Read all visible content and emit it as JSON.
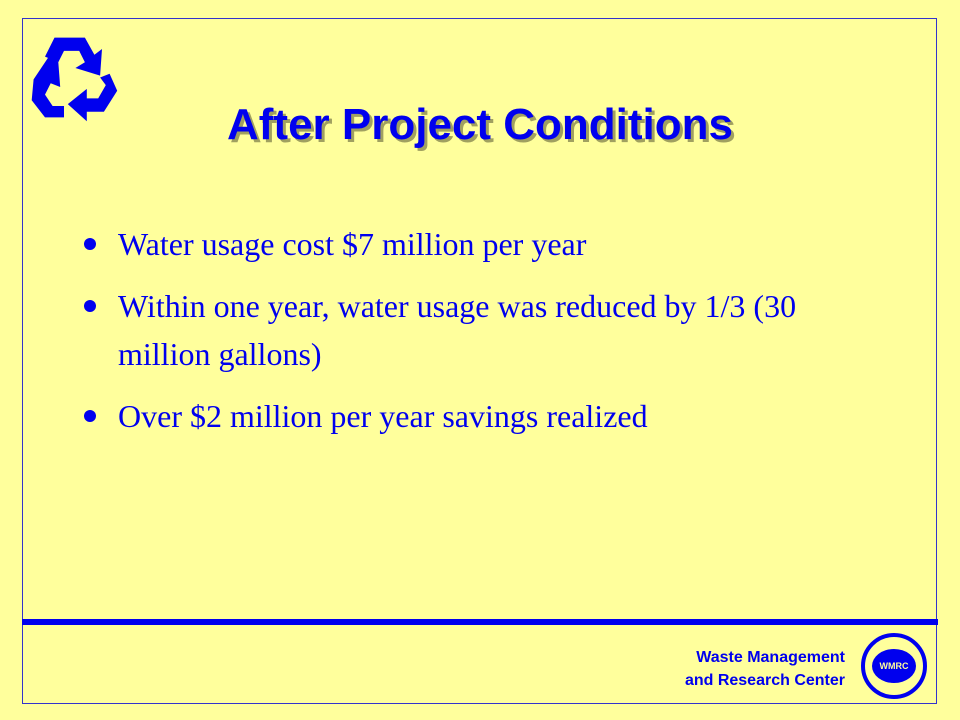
{
  "slide": {
    "title": "After Project Conditions",
    "bullets": [
      "Water usage cost $7 million per year",
      "Within one year, water usage was reduced by 1/3 (30 million gallons)",
      "Over $2 million per year savings realized"
    ],
    "footer": {
      "lines": [
        "Waste Management",
        "and Research Center"
      ],
      "logo": "WMRC"
    }
  }
}
